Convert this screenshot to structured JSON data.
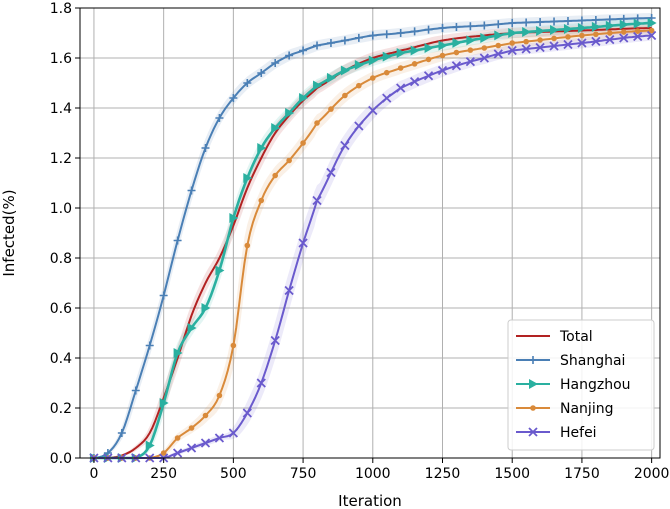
{
  "chart_data": {
    "type": "line",
    "xlabel": "Iteration",
    "ylabel": "Infected(%)",
    "xlim": [
      -50,
      2030
    ],
    "ylim": [
      0,
      1.8
    ],
    "xticks": [
      0,
      250,
      500,
      750,
      1000,
      1250,
      1500,
      1750,
      2000
    ],
    "yticks": [
      0.0,
      0.2,
      0.4,
      0.6,
      0.8,
      1.0,
      1.2,
      1.4,
      1.6,
      1.8
    ],
    "xtick_labels": [
      "0",
      "250",
      "500",
      "750",
      "1000",
      "1250",
      "1500",
      "1750",
      "2000"
    ],
    "ytick_labels": [
      "0.0",
      "0.2",
      "0.4",
      "0.6",
      "0.8",
      "1.0",
      "1.2",
      "1.4",
      "1.6",
      "1.8"
    ],
    "grid": true,
    "legend_position": "bottom-right",
    "x": [
      0,
      50,
      100,
      150,
      200,
      250,
      300,
      350,
      400,
      450,
      500,
      550,
      600,
      650,
      700,
      750,
      800,
      900,
      1000,
      1100,
      1250,
      1400,
      1500,
      1750,
      2000
    ],
    "series": [
      {
        "name": "Total",
        "color": "#b22222",
        "marker": "none",
        "values": [
          0.0,
          0.0,
          0.01,
          0.04,
          0.1,
          0.24,
          0.4,
          0.57,
          0.7,
          0.8,
          0.93,
          1.08,
          1.2,
          1.3,
          1.37,
          1.43,
          1.48,
          1.55,
          1.6,
          1.63,
          1.67,
          1.69,
          1.7,
          1.71,
          1.72
        ],
        "band": 0.07
      },
      {
        "name": "Shanghai",
        "color": "#4a7fb5",
        "marker": "plus",
        "values": [
          0.0,
          0.02,
          0.1,
          0.27,
          0.45,
          0.65,
          0.87,
          1.07,
          1.24,
          1.36,
          1.44,
          1.5,
          1.54,
          1.58,
          1.61,
          1.63,
          1.65,
          1.67,
          1.69,
          1.7,
          1.72,
          1.73,
          1.74,
          1.75,
          1.76
        ],
        "band": 0.05
      },
      {
        "name": "Hangzhou",
        "color": "#2ab0a0",
        "marker": "triangle-right",
        "values": [
          0.0,
          0.0,
          0.0,
          0.0,
          0.05,
          0.22,
          0.42,
          0.52,
          0.6,
          0.75,
          0.96,
          1.12,
          1.24,
          1.32,
          1.38,
          1.44,
          1.49,
          1.55,
          1.59,
          1.62,
          1.65,
          1.68,
          1.7,
          1.72,
          1.74
        ],
        "band": 0.06
      },
      {
        "name": "Nanjing",
        "color": "#d98a3a",
        "marker": "dot",
        "values": [
          0.0,
          0.0,
          0.0,
          0.0,
          0.0,
          0.02,
          0.08,
          0.12,
          0.17,
          0.25,
          0.45,
          0.85,
          1.03,
          1.13,
          1.19,
          1.26,
          1.34,
          1.45,
          1.52,
          1.56,
          1.61,
          1.64,
          1.66,
          1.69,
          1.71
        ],
        "band": 0.09
      },
      {
        "name": "Hefei",
        "color": "#6a5acd",
        "marker": "x",
        "values": [
          0.0,
          0.0,
          0.0,
          0.0,
          0.0,
          0.0,
          0.02,
          0.04,
          0.06,
          0.08,
          0.1,
          0.18,
          0.3,
          0.47,
          0.67,
          0.86,
          1.03,
          1.25,
          1.39,
          1.48,
          1.55,
          1.6,
          1.63,
          1.66,
          1.69
        ],
        "band": 0.12
      }
    ]
  }
}
